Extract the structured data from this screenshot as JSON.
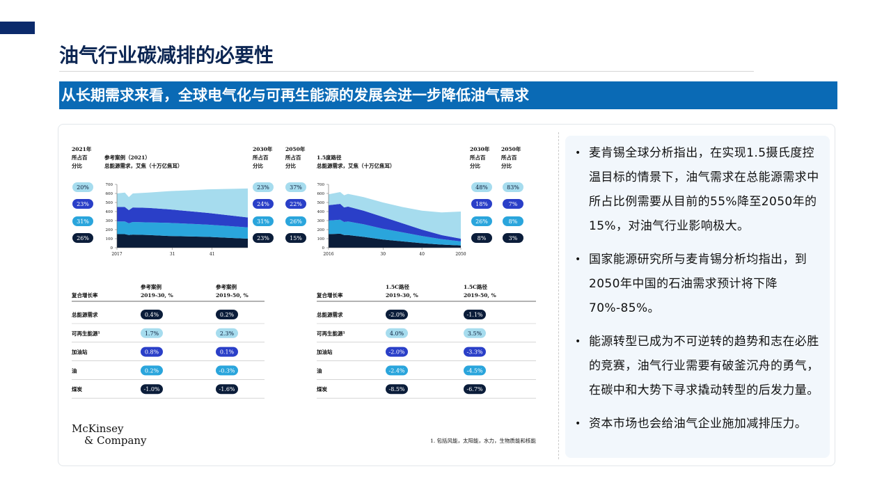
{
  "header": {
    "title": "油气行业碳减排的必要性"
  },
  "banner": {
    "text": "从长期需求来看，全球电气化与可再生能源的发展会进一步降低油气需求"
  },
  "figure": {
    "charts": [
      {
        "type": "area",
        "title": [
          "参考案例（2021）",
          "总能源需求，艾焦（十万亿焦耳）"
        ],
        "column_headers": [
          [
            "2021年",
            "所占百",
            "分比"
          ],
          [
            "2030年",
            "所占百",
            "分比"
          ],
          [
            "2050年",
            "所占百",
            "分比"
          ]
        ],
        "shares": [
          [
            "20%",
            "23%",
            "31%",
            "26%"
          ],
          [
            "23%",
            "24%",
            "31%",
            "23%"
          ],
          [
            "37%",
            "22%",
            "26%",
            "15%"
          ]
        ],
        "xlim": [
          2017,
          2050
        ],
        "xticks": [
          2017,
          {
            "value": 2031,
            "label": "31"
          },
          {
            "value": 2041,
            "label": "41"
          }
        ],
        "ylim": [
          0,
          700
        ],
        "yticks": [
          0,
          100,
          200,
          300,
          400,
          500,
          600,
          700
        ],
        "x": [
          2017,
          2019,
          2020,
          2021,
          2025,
          2030,
          2035,
          2040,
          2045,
          2050
        ],
        "series": [
          {
            "color": "#0b1d3a",
            "values": [
              150,
              150,
              140,
              145,
              140,
              130,
              125,
              120,
              110,
              100
            ]
          },
          {
            "color": "#2aa5dc",
            "values": [
              140,
              140,
              130,
              140,
              140,
              145,
              140,
              135,
              130,
              125
            ]
          },
          {
            "color": "#2a3fc8",
            "values": [
              160,
              160,
              145,
              160,
              160,
              150,
              140,
              130,
              120,
              110
            ]
          },
          {
            "color": "#a6dcee",
            "values": [
              150,
              160,
              145,
              155,
              170,
              200,
              230,
              260,
              290,
              320
            ]
          }
        ]
      },
      {
        "type": "area",
        "title": [
          "1.5度路径",
          "总能源需求，艾焦（十万亿焦耳）"
        ],
        "column_headers": [
          [
            "2030年",
            "所占百",
            "分比"
          ],
          [
            "2050年",
            "所占百",
            "分比"
          ]
        ],
        "shares": [
          [
            "48%",
            "18%",
            "26%",
            "8%"
          ],
          [
            "83%",
            "7%",
            "8%",
            "3%"
          ]
        ],
        "xlim": [
          2016,
          2050
        ],
        "xticks": [
          2016,
          {
            "value": 2030,
            "label": "30"
          },
          {
            "value": 2040,
            "label": "40"
          },
          2050
        ],
        "ylim": [
          0,
          700
        ],
        "yticks": [
          0,
          100,
          200,
          300,
          400,
          500,
          600,
          700
        ],
        "x": [
          2016,
          2019,
          2020,
          2021,
          2025,
          2030,
          2035,
          2040,
          2045,
          2050
        ],
        "series": [
          {
            "color": "#0b1d3a",
            "values": [
              150,
              155,
              140,
              140,
              120,
              90,
              70,
              50,
              35,
              25
            ]
          },
          {
            "color": "#2aa5dc",
            "values": [
              150,
              155,
              145,
              150,
              140,
              120,
              100,
              80,
              60,
              45
            ]
          },
          {
            "color": "#2a3fc8",
            "values": [
              170,
              175,
              160,
              165,
              150,
              130,
              100,
              70,
              45,
              30
            ]
          },
          {
            "color": "#a6dcee",
            "values": [
              120,
              130,
              135,
              140,
              150,
              160,
              180,
              210,
              250,
              300
            ]
          }
        ]
      }
    ],
    "tables": [
      {
        "header": [
          "复合增长率",
          [
            "参考案例",
            "2019-30, %"
          ],
          [
            "参考案例",
            "2019-50, %"
          ]
        ],
        "rows": [
          [
            "总能源需求",
            "0.4%",
            "0.2%"
          ],
          [
            "可再生能源¹",
            "1.7%",
            "2.3%"
          ],
          [
            "加油站",
            "0.8%",
            "0.1%"
          ],
          [
            "油",
            "0.2%",
            "-0.3%"
          ],
          [
            "煤炭",
            "-1.0%",
            "-1.6%"
          ]
        ]
      },
      {
        "header": [
          "复合增长率",
          [
            "1.5C路径",
            "2019-30, %"
          ],
          [
            "1.5C路径",
            "2019-50, %"
          ]
        ],
        "rows": [
          [
            "总能源需求",
            "-2.0%",
            "-1.1%"
          ],
          [
            "可再生能源¹",
            "4.0%",
            "3.5%"
          ],
          [
            "加油站",
            "-2.0%",
            "-3.3%"
          ],
          [
            "油",
            "-2.4%",
            "-4.5%"
          ],
          [
            "煤炭",
            "-8.5%",
            "-6.7%"
          ]
        ]
      }
    ],
    "logo": [
      "McKinsey",
      "& Company"
    ],
    "footnote": "1. 包括风能，太阳能，水力，生物质能和核能"
  },
  "bullets": [
    "麦肯锡全球分析指出，在实现1.5摄氏度控温目标的情景下，油气需求在总能源需求中所占比例需要从目前的55%降至2050年的15%，对油气行业影响极大。",
    "国家能源研究所与麦肯锡分析均指出，到2050年中国的石油需求预计将下降70%-85%。",
    "能源转型已成为不可逆转的趋势和志在必胜的竞赛，油气行业需要有破釜沉舟的勇气，在碳中和大势下寻求撬动转型的后发力量。",
    "资本市场也会给油气企业施加减排压力。"
  ]
}
